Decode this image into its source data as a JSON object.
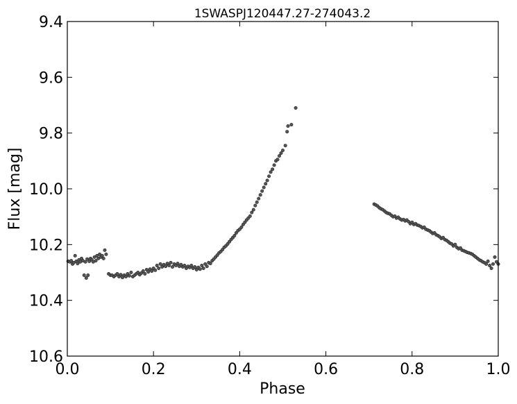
{
  "chart_data": {
    "type": "scatter",
    "title": "1SWASPJ120447.27-274043.2",
    "xlabel": "Phase",
    "ylabel": "Flux [mag]",
    "xlim": [
      0.0,
      1.0
    ],
    "ylim": [
      9.4,
      10.6
    ],
    "y_inverted": true,
    "grid": false,
    "legend": "none",
    "x_ticks": [
      "0.0",
      "0.2",
      "0.4",
      "0.6",
      "0.8",
      "1.0"
    ],
    "y_ticks": [
      "9.4",
      "9.6",
      "9.8",
      "10.0",
      "10.2",
      "10.4",
      "10.6"
    ],
    "marker_color": "#555555",
    "series": [
      {
        "points": [
          [
            0.002,
            10.26
          ],
          [
            0.006,
            10.262
          ],
          [
            0.009,
            10.258
          ],
          [
            0.012,
            10.27
          ],
          [
            0.015,
            10.265
          ],
          [
            0.018,
            10.24
          ],
          [
            0.021,
            10.26
          ],
          [
            0.024,
            10.268
          ],
          [
            0.027,
            10.255
          ],
          [
            0.03,
            10.262
          ],
          [
            0.033,
            10.25
          ],
          [
            0.036,
            10.258
          ],
          [
            0.039,
            10.31
          ],
          [
            0.042,
            10.262
          ],
          [
            0.044,
            10.32
          ],
          [
            0.046,
            10.252
          ],
          [
            0.048,
            10.31
          ],
          [
            0.051,
            10.26
          ],
          [
            0.054,
            10.25
          ],
          [
            0.057,
            10.255
          ],
          [
            0.06,
            10.262
          ],
          [
            0.063,
            10.245
          ],
          [
            0.066,
            10.258
          ],
          [
            0.069,
            10.24
          ],
          [
            0.072,
            10.25
          ],
          [
            0.075,
            10.235
          ],
          [
            0.078,
            10.245
          ],
          [
            0.081,
            10.24
          ],
          [
            0.084,
            10.25
          ],
          [
            0.087,
            10.22
          ],
          [
            0.09,
            10.235
          ],
          [
            0.096,
            10.305
          ],
          [
            0.1,
            10.31
          ],
          [
            0.104,
            10.31
          ],
          [
            0.108,
            10.315
          ],
          [
            0.112,
            10.31
          ],
          [
            0.116,
            10.305
          ],
          [
            0.12,
            10.315
          ],
          [
            0.124,
            10.308
          ],
          [
            0.128,
            10.318
          ],
          [
            0.132,
            10.31
          ],
          [
            0.136,
            10.315
          ],
          [
            0.14,
            10.305
          ],
          [
            0.144,
            10.312
          ],
          [
            0.148,
            10.3
          ],
          [
            0.152,
            10.315
          ],
          [
            0.156,
            10.31
          ],
          [
            0.16,
            10.305
          ],
          [
            0.164,
            10.3
          ],
          [
            0.168,
            10.308
          ],
          [
            0.172,
            10.302
          ],
          [
            0.176,
            10.295
          ],
          [
            0.18,
            10.305
          ],
          [
            0.184,
            10.29
          ],
          [
            0.188,
            10.298
          ],
          [
            0.192,
            10.288
          ],
          [
            0.196,
            10.295
          ],
          [
            0.2,
            10.285
          ],
          [
            0.204,
            10.292
          ],
          [
            0.208,
            10.275
          ],
          [
            0.212,
            10.285
          ],
          [
            0.216,
            10.27
          ],
          [
            0.22,
            10.28
          ],
          [
            0.224,
            10.272
          ],
          [
            0.228,
            10.278
          ],
          [
            0.232,
            10.268
          ],
          [
            0.236,
            10.275
          ],
          [
            0.24,
            10.265
          ],
          [
            0.244,
            10.28
          ],
          [
            0.248,
            10.27
          ],
          [
            0.252,
            10.275
          ],
          [
            0.256,
            10.268
          ],
          [
            0.26,
            10.278
          ],
          [
            0.264,
            10.272
          ],
          [
            0.268,
            10.28
          ],
          [
            0.272,
            10.275
          ],
          [
            0.276,
            10.285
          ],
          [
            0.28,
            10.278
          ],
          [
            0.284,
            10.282
          ],
          [
            0.288,
            10.275
          ],
          [
            0.292,
            10.285
          ],
          [
            0.296,
            10.28
          ],
          [
            0.3,
            10.29
          ],
          [
            0.304,
            10.282
          ],
          [
            0.308,
            10.288
          ],
          [
            0.312,
            10.275
          ],
          [
            0.316,
            10.285
          ],
          [
            0.32,
            10.27
          ],
          [
            0.324,
            10.278
          ],
          [
            0.328,
            10.265
          ],
          [
            0.332,
            10.268
          ],
          [
            0.336,
            10.258
          ],
          [
            0.34,
            10.252
          ],
          [
            0.344,
            10.245
          ],
          [
            0.348,
            10.238
          ],
          [
            0.352,
            10.23
          ],
          [
            0.356,
            10.225
          ],
          [
            0.36,
            10.218
          ],
          [
            0.364,
            10.21
          ],
          [
            0.368,
            10.205
          ],
          [
            0.372,
            10.198
          ],
          [
            0.376,
            10.19
          ],
          [
            0.38,
            10.182
          ],
          [
            0.384,
            10.175
          ],
          [
            0.388,
            10.168
          ],
          [
            0.392,
            10.158
          ],
          [
            0.396,
            10.15
          ],
          [
            0.4,
            10.145
          ],
          [
            0.404,
            10.138
          ],
          [
            0.408,
            10.128
          ],
          [
            0.412,
            10.12
          ],
          [
            0.416,
            10.112
          ],
          [
            0.42,
            10.105
          ],
          [
            0.424,
            10.098
          ],
          [
            0.428,
            10.085
          ],
          [
            0.432,
            10.075
          ],
          [
            0.436,
            10.06
          ],
          [
            0.44,
            10.048
          ],
          [
            0.444,
            10.035
          ],
          [
            0.448,
            10.022
          ],
          [
            0.452,
            10.008
          ],
          [
            0.456,
            9.995
          ],
          [
            0.46,
            9.982
          ],
          [
            0.464,
            9.97
          ],
          [
            0.468,
            9.955
          ],
          [
            0.472,
            9.94
          ],
          [
            0.476,
            9.93
          ],
          [
            0.48,
            9.915
          ],
          [
            0.484,
            9.9
          ],
          [
            0.488,
            9.895
          ],
          [
            0.492,
            9.882
          ],
          [
            0.496,
            9.872
          ],
          [
            0.5,
            9.862
          ],
          [
            0.506,
            9.845
          ],
          [
            0.51,
            9.795
          ],
          [
            0.512,
            9.775
          ],
          [
            0.52,
            9.77
          ],
          [
            0.53,
            9.71
          ],
          [
            0.712,
            10.055
          ],
          [
            0.716,
            10.058
          ],
          [
            0.72,
            10.062
          ],
          [
            0.724,
            10.068
          ],
          [
            0.728,
            10.072
          ],
          [
            0.732,
            10.075
          ],
          [
            0.736,
            10.08
          ],
          [
            0.74,
            10.085
          ],
          [
            0.744,
            10.088
          ],
          [
            0.748,
            10.09
          ],
          [
            0.752,
            10.095
          ],
          [
            0.756,
            10.1
          ],
          [
            0.76,
            10.098
          ],
          [
            0.764,
            10.105
          ],
          [
            0.768,
            10.102
          ],
          [
            0.772,
            10.108
          ],
          [
            0.776,
            10.112
          ],
          [
            0.78,
            10.11
          ],
          [
            0.784,
            10.115
          ],
          [
            0.788,
            10.112
          ],
          [
            0.792,
            10.118
          ],
          [
            0.796,
            10.125
          ],
          [
            0.8,
            10.12
          ],
          [
            0.804,
            10.128
          ],
          [
            0.808,
            10.125
          ],
          [
            0.812,
            10.13
          ],
          [
            0.816,
            10.132
          ],
          [
            0.82,
            10.135
          ],
          [
            0.824,
            10.14
          ],
          [
            0.828,
            10.138
          ],
          [
            0.832,
            10.145
          ],
          [
            0.836,
            10.148
          ],
          [
            0.84,
            10.15
          ],
          [
            0.844,
            10.155
          ],
          [
            0.848,
            10.16
          ],
          [
            0.852,
            10.158
          ],
          [
            0.856,
            10.165
          ],
          [
            0.86,
            10.168
          ],
          [
            0.864,
            10.172
          ],
          [
            0.868,
            10.178
          ],
          [
            0.872,
            10.175
          ],
          [
            0.876,
            10.182
          ],
          [
            0.88,
            10.185
          ],
          [
            0.884,
            10.19
          ],
          [
            0.888,
            10.195
          ],
          [
            0.892,
            10.198
          ],
          [
            0.896,
            10.205
          ],
          [
            0.9,
            10.2
          ],
          [
            0.904,
            10.21
          ],
          [
            0.908,
            10.215
          ],
          [
            0.912,
            10.212
          ],
          [
            0.916,
            10.22
          ],
          [
            0.92,
            10.222
          ],
          [
            0.924,
            10.225
          ],
          [
            0.928,
            10.228
          ],
          [
            0.932,
            10.23
          ],
          [
            0.936,
            10.232
          ],
          [
            0.94,
            10.235
          ],
          [
            0.944,
            10.24
          ],
          [
            0.948,
            10.245
          ],
          [
            0.952,
            10.25
          ],
          [
            0.956,
            10.255
          ],
          [
            0.96,
            10.258
          ],
          [
            0.964,
            10.262
          ],
          [
            0.968,
            10.265
          ],
          [
            0.972,
            10.27
          ],
          [
            0.976,
            10.26
          ],
          [
            0.98,
            10.275
          ],
          [
            0.984,
            10.285
          ],
          [
            0.988,
            10.27
          ],
          [
            0.992,
            10.245
          ],
          [
            0.996,
            10.262
          ],
          [
            1.0,
            10.27
          ]
        ]
      }
    ]
  }
}
